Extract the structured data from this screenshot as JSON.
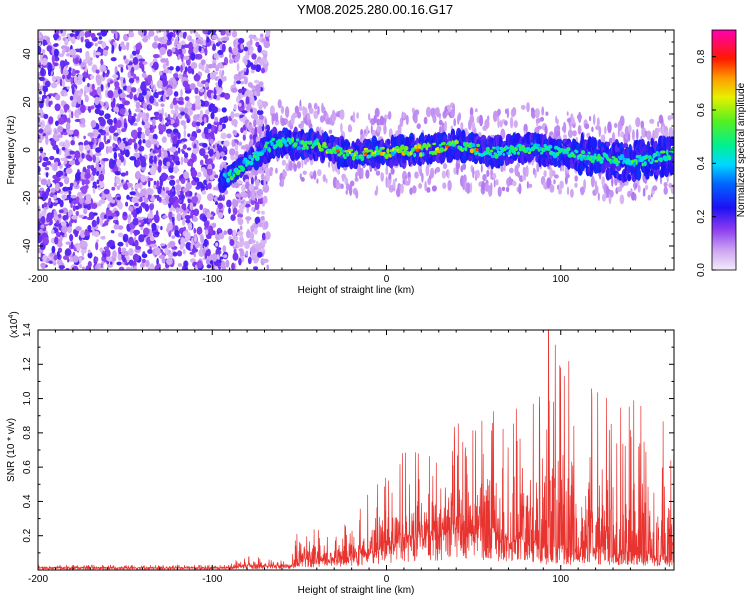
{
  "title": "YM08.2025.280.00.16.G17",
  "chart_data": [
    {
      "type": "heatmap",
      "xlabel": "Height of straight line (km)",
      "ylabel": "Frequency (Hz)",
      "xlim": [
        -200,
        165
      ],
      "ylim": [
        -50,
        50
      ],
      "xticks": [
        -200,
        -100,
        0,
        100
      ],
      "yticks": [
        -40,
        -20,
        0,
        20,
        40
      ],
      "colorbar": {
        "label": "Normalized spectral amplitude",
        "range": [
          0.0,
          0.9
        ],
        "ticks": [
          "0.0",
          "0.2",
          "0.4",
          "0.6",
          "0.8"
        ]
      },
      "features": [
        {
          "label": "noise region",
          "x_range": [
            -200,
            -70
          ],
          "amplitude": "low"
        },
        {
          "label": "signal track",
          "x_range": [
            -95,
            165
          ],
          "frequency_center_hz": [
            [
              -95,
              -13
            ],
            [
              -80,
              -5
            ],
            [
              -65,
              3
            ],
            [
              -40,
              2
            ],
            [
              -20,
              -2
            ],
            [
              0,
              -1
            ],
            [
              20,
              0
            ],
            [
              40,
              2
            ],
            [
              60,
              -1
            ],
            [
              80,
              1
            ],
            [
              100,
              -1
            ],
            [
              120,
              -3
            ],
            [
              140,
              -5
            ],
            [
              165,
              -2
            ]
          ],
          "peak_amplitude": 0.9
        }
      ]
    },
    {
      "type": "line",
      "xlabel": "Height of straight line (km)",
      "ylabel": "SNR (10 * v/v)",
      "yscale_label": "(x10",
      "yscale_exp": "4",
      "xlim": [
        -200,
        165
      ],
      "ylim": [
        0,
        1.4
      ],
      "xticks": [
        -200,
        -100,
        0,
        100
      ],
      "yticks": [
        "0.2",
        "0.4",
        "0.6",
        "0.8",
        "1.0",
        "1.2",
        "1.4"
      ],
      "color": "#e8332f",
      "envelope": [
        {
          "x": -200,
          "base": 0.01,
          "peak": 0.03
        },
        {
          "x": -90,
          "base": 0.01,
          "peak": 0.03
        },
        {
          "x": -83,
          "base": 0.02,
          "peak": 0.09
        },
        {
          "x": -55,
          "base": 0.02,
          "peak": 0.05
        },
        {
          "x": -50,
          "base": 0.05,
          "peak": 0.3
        },
        {
          "x": -30,
          "base": 0.05,
          "peak": 0.2
        },
        {
          "x": -10,
          "base": 0.08,
          "peak": 0.45
        },
        {
          "x": 10,
          "base": 0.15,
          "peak": 0.7
        },
        {
          "x": 40,
          "base": 0.2,
          "peak": 0.85
        },
        {
          "x": 70,
          "base": 0.15,
          "peak": 1.05
        },
        {
          "x": 93,
          "base": 0.1,
          "peak": 1.4
        },
        {
          "x": 120,
          "base": 0.1,
          "peak": 1.1
        },
        {
          "x": 165,
          "base": 0.05,
          "peak": 0.9
        }
      ]
    }
  ]
}
